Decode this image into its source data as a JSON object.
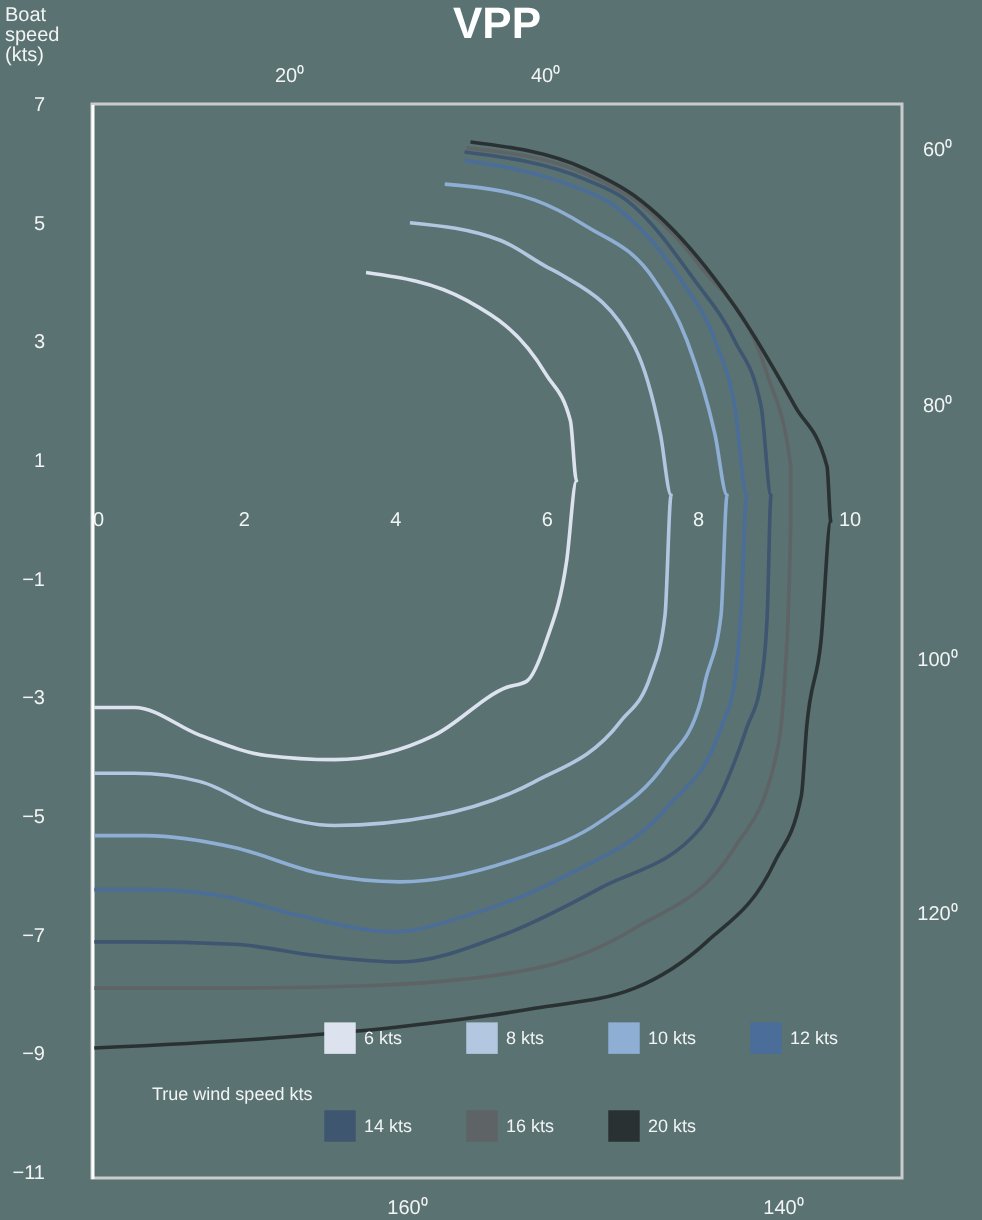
{
  "chart_data": {
    "type": "line",
    "title": "VPP",
    "ylabel": "Boat speed (kts)",
    "legend_title": "True wind speed kts",
    "legend": "bottom",
    "xlim": [
      0,
      10.7
    ],
    "ylim": [
      -11.1,
      7
    ],
    "xticks": [
      0,
      2,
      4,
      6,
      8,
      10
    ],
    "yticks": [
      7,
      5,
      3,
      1,
      -1,
      -3,
      -5,
      -7,
      -9,
      -11
    ],
    "grid": false,
    "marker": "none",
    "line_style": "solid",
    "annotations": [
      "20⁰",
      "40⁰",
      "60⁰",
      "80⁰",
      "100⁰",
      "120⁰",
      "160⁰",
      "140⁰"
    ],
    "series": [
      {
        "name": "6 kts",
        "color": "#dde3ee",
        "x": [
          3.62,
          4.95,
          6.0,
          6.32,
          6.4,
          6.27,
          6.0,
          5.74,
          5.48,
          4.52,
          3.2,
          2.3,
          1.43,
          0.56,
          0.03
        ],
        "values": [
          4.16,
          3.69,
          2.44,
          1.66,
          0.65,
          -0.7,
          -2.05,
          -2.73,
          -2.83,
          -3.64,
          -4.05,
          -3.98,
          -3.64,
          -3.17,
          -3.17
        ]
      },
      {
        "name": "8 kts",
        "color": "#b3c8e0",
        "x": [
          4.2,
          5.4,
          6.0,
          6.19,
          7.17,
          7.51,
          7.65,
          7.57,
          7.38,
          6.98,
          5.85,
          4.52,
          3.2,
          2.3,
          1.43,
          0.56,
          0.03
        ],
        "values": [
          5.0,
          4.7,
          4.26,
          4.13,
          2.9,
          1.43,
          0.41,
          -1.61,
          -2.63,
          -3.41,
          -4.42,
          -5.0,
          -5.16,
          -4.93,
          -4.42,
          -4.28,
          -4.28
        ]
      },
      {
        "name": "10 kts",
        "color": "#8eaed4",
        "x": [
          4.66,
          5.85,
          6.53,
          7.43,
          7.86,
          8.23,
          8.39,
          8.31,
          8.1,
          8.04,
          7.59,
          6.72,
          5.66,
          4.07,
          3.02,
          1.88,
          0.71,
          0.03
        ],
        "values": [
          5.65,
          5.38,
          4.94,
          4.03,
          3.01,
          1.43,
          0.41,
          -1.61,
          -2.73,
          -3.07,
          -4.08,
          -5.09,
          -5.7,
          -6.11,
          -5.97,
          -5.53,
          -5.33,
          -5.33
        ]
      },
      {
        "name": "12 kts",
        "color": "#4a6d99",
        "x": [
          4.92,
          6.27,
          6.9,
          7.78,
          8.23,
          8.49,
          8.65,
          8.57,
          8.49,
          8.31,
          7.59,
          6.27,
          4.95,
          3.99,
          2.75,
          1.69,
          0.71,
          0.03
        ],
        "values": [
          6.05,
          5.65,
          5.28,
          4.03,
          3.01,
          1.9,
          0.41,
          -1.61,
          -2.73,
          -3.51,
          -4.86,
          -6.0,
          -6.68,
          -6.95,
          -6.68,
          -6.34,
          -6.24,
          -6.24
        ]
      },
      {
        "name": "14 kts",
        "color": "#3f5670",
        "x": [
          4.92,
          6.53,
          7.06,
          7.96,
          8.49,
          8.84,
          8.97,
          8.92,
          8.84,
          8.65,
          8.04,
          6.72,
          5.4,
          4.07,
          3.02,
          1.88,
          0.56,
          0.03
        ],
        "values": [
          6.19,
          5.72,
          5.38,
          4.03,
          3.01,
          1.9,
          0.41,
          -1.61,
          -2.73,
          -3.51,
          -5.2,
          -6.21,
          -7.02,
          -7.46,
          -7.36,
          -7.16,
          -7.12,
          -7.12
        ]
      },
      {
        "name": "16 kts",
        "color": "#5e6466",
        "x": [
          4.95,
          6.53,
          7.17,
          8.04,
          8.92,
          9.23,
          9.23,
          9.15,
          9.02,
          8.49,
          7.17,
          5.85,
          3.62,
          1.88,
          0.03
        ],
        "values": [
          6.26,
          5.82,
          5.38,
          4.26,
          2.44,
          0.89,
          -0.03,
          -2.73,
          -4.08,
          -5.53,
          -6.89,
          -7.57,
          -7.86,
          -7.9,
          -7.9
        ]
      },
      {
        "name": "20 kts",
        "color": "#2a3133",
        "x": [
          5.0,
          6.53,
          7.17,
          8.49,
          9.29,
          9.71,
          9.76,
          9.63,
          9.44,
          9.37,
          9.02,
          8.12,
          7.17,
          5.85,
          4.07,
          2.3,
          0.03
        ],
        "values": [
          6.36,
          5.9,
          5.45,
          3.59,
          1.9,
          0.89,
          -0.03,
          -2.05,
          -3.51,
          -4.66,
          -5.77,
          -7.12,
          -7.9,
          -8.24,
          -8.55,
          -8.75,
          -8.91
        ]
      }
    ]
  }
}
